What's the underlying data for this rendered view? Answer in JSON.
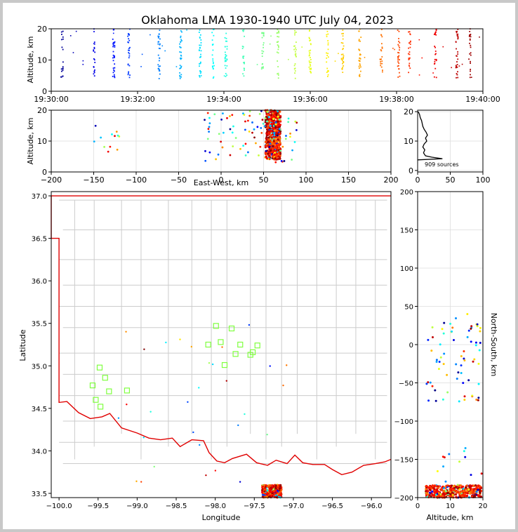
{
  "title": "Oklahoma LMA 1930-1940 UTC July 04, 2023",
  "colors": {
    "state_border": "#e00000",
    "county_lines": "#cccccc",
    "station_marker": "#80ff40",
    "grid": "#dddddd"
  },
  "sources_label": "909 sources",
  "chart_data": [
    {
      "name": "time-altitude",
      "type": "scatter",
      "xlabel": "",
      "ylabel": "Altitude, km",
      "xlim": [
        "19:30:00",
        "19:40:00"
      ],
      "ylim": [
        0,
        20
      ],
      "xticks": [
        "19:30:00",
        "19:32:00",
        "19:34:00",
        "19:36:00",
        "19:38:00",
        "19:40:00"
      ],
      "yticks": [
        "0",
        "10",
        "20"
      ],
      "color_by": "time (blue → red)",
      "columns_minutes": [
        0.25,
        1.0,
        1.45,
        1.8,
        2.5,
        3.0,
        3.45,
        3.75,
        4.05,
        4.45,
        4.9,
        5.25,
        5.65,
        6.0,
        6.4,
        6.75,
        7.15,
        7.65,
        8.05,
        8.3,
        8.9,
        9.4,
        9.7
      ]
    },
    {
      "name": "east-west-altitude",
      "type": "scatter",
      "xlabel": "East-West, km",
      "ylabel": "Altitude, km",
      "xlim": [
        -200,
        200
      ],
      "ylim": [
        0,
        20
      ],
      "xticks": [
        "−200",
        "−150",
        "−100",
        "−50",
        "0",
        "50",
        "100",
        "150",
        "200"
      ],
      "yticks": [
        "0",
        "10",
        "20"
      ],
      "main_cluster_x_km": [
        52,
        70
      ],
      "outlier_group_x_km": [
        -150,
        -115
      ]
    },
    {
      "name": "altitude-histogram",
      "type": "line",
      "xlabel": "",
      "ylabel": "",
      "xlim": [
        0,
        100
      ],
      "ylim": [
        0,
        20
      ],
      "xticks": [
        "0",
        "50",
        "100"
      ],
      "yticks": [
        "0",
        "10",
        "20"
      ],
      "profile": [
        [
          4,
          38
        ],
        [
          4.5,
          22
        ],
        [
          5,
          12
        ],
        [
          6,
          9
        ],
        [
          7,
          11
        ],
        [
          8,
          8
        ],
        [
          9,
          10
        ],
        [
          10,
          14
        ],
        [
          11,
          12
        ],
        [
          12,
          15
        ],
        [
          13,
          13
        ],
        [
          14,
          10
        ],
        [
          15,
          8
        ],
        [
          16,
          7
        ],
        [
          17,
          6
        ],
        [
          18,
          4
        ],
        [
          19,
          3
        ],
        [
          20,
          1
        ]
      ],
      "total_sources": 909
    },
    {
      "name": "plan-view",
      "type": "scatter",
      "xlabel": "Longitude",
      "ylabel": "Latitude",
      "xlim": [
        -100.1,
        -95.75
      ],
      "ylim": [
        33.45,
        37.05
      ],
      "xticks": [
        "−100.0",
        "−99.5",
        "−99.0",
        "−98.5",
        "−98.0",
        "−97.5",
        "−97.0",
        "−96.5",
        "−96.0"
      ],
      "yticks": [
        "33.5",
        "34.0",
        "34.5",
        "35.0",
        "35.5",
        "36.0",
        "36.5",
        "37.0"
      ],
      "stations": [
        [
          -99.48,
          34.98
        ],
        [
          -99.41,
          34.86
        ],
        [
          -99.57,
          34.77
        ],
        [
          -99.36,
          34.7
        ],
        [
          -99.53,
          34.6
        ],
        [
          -99.47,
          34.52
        ],
        [
          -99.13,
          34.71
        ],
        [
          -97.99,
          35.47
        ],
        [
          -97.79,
          35.44
        ],
        [
          -98.09,
          35.25
        ],
        [
          -97.93,
          35.28
        ],
        [
          -97.68,
          35.25
        ],
        [
          -97.88,
          35.01
        ],
        [
          -97.74,
          35.14
        ],
        [
          -97.55,
          35.13
        ],
        [
          -97.52,
          35.16
        ],
        [
          -97.46,
          35.24
        ]
      ],
      "main_cluster": {
        "lon": [
          -97.4,
          -97.15
        ],
        "lat": [
          33.45,
          33.6
        ]
      }
    },
    {
      "name": "altitude-north-south",
      "type": "scatter",
      "xlabel": "Altitude, km",
      "ylabel": "North-South, km",
      "xlim": [
        0,
        20
      ],
      "ylim": [
        -200,
        200
      ],
      "xticks": [
        "0",
        "10",
        "20"
      ],
      "yticks": [
        "−200",
        "−150",
        "−100",
        "−50",
        "0",
        "50",
        "100",
        "150",
        "200"
      ]
    }
  ]
}
